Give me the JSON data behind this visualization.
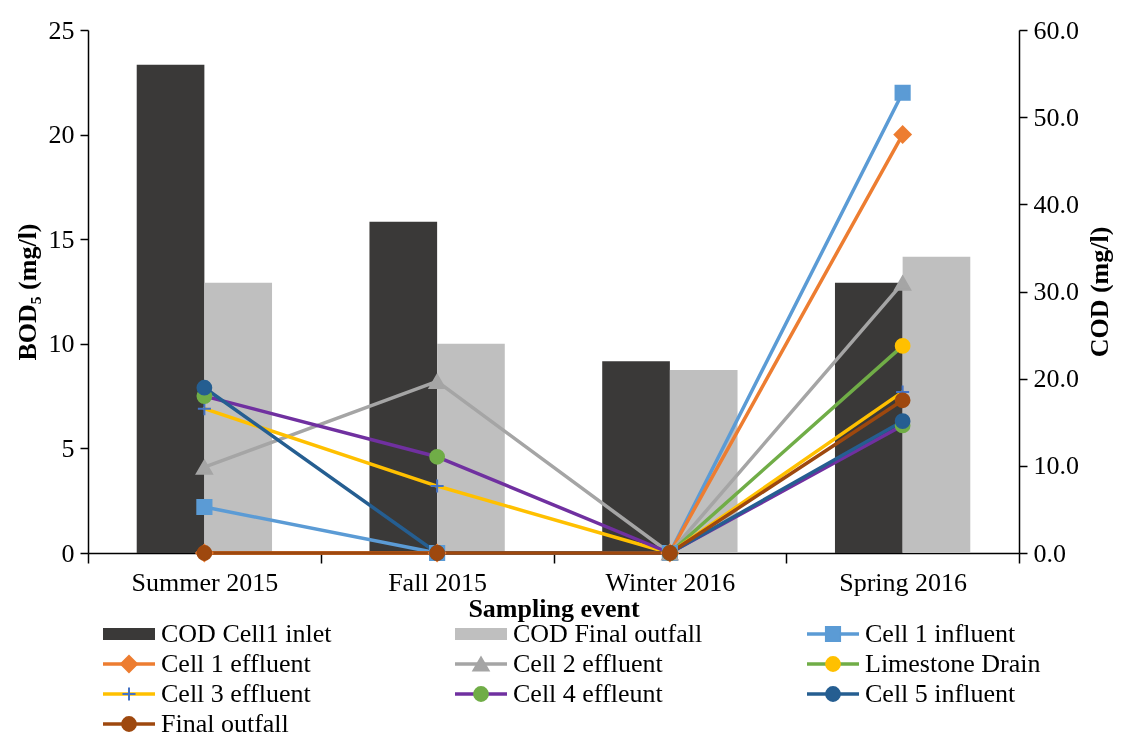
{
  "chart_data": {
    "type": "bar",
    "xlabel": "Sampling event",
    "ylabel": "BOD₅ (mg/l)",
    "y2label": "COD (mg/l)",
    "categories": [
      "Summer 2015",
      "Fall 2015",
      "Winter 2016",
      "Spring 2016"
    ],
    "series": [
      {
        "name": "COD Cell1 inlet",
        "axis": "y2",
        "color": "#3a3938",
        "values": [
          56,
          38,
          22,
          31
        ]
      },
      {
        "name": "COD Final outfall",
        "axis": "y2",
        "color": "#bfbfbf",
        "values": [
          31,
          24,
          21,
          34
        ]
      },
      {
        "name": "Cell 1 influent",
        "type": "line",
        "color": "#5b9bd5",
        "marker": "square",
        "values": [
          2.2,
          0,
          0,
          22
        ]
      },
      {
        "name": "Cell 1 effluent",
        "type": "line",
        "color": "#ed7d31",
        "marker": "diamond",
        "values": [
          0,
          0,
          0,
          20
        ]
      },
      {
        "name": "Cell 2 effluent",
        "type": "line",
        "color": "#a5a5a5",
        "marker": "triangle",
        "values": [
          4.1,
          8.2,
          0,
          12.9
        ]
      },
      {
        "name": "Limestone Drain",
        "type": "line",
        "color": "#70ad47",
        "colors": [
          "#ffc000",
          "#ffc000",
          "#ffc000",
          "#ffc000"
        ],
        "marker": "circle",
        "values": [
          null,
          null,
          0,
          9.9
        ]
      },
      {
        "name": "Cell 3 effluent",
        "type": "line",
        "color": "#ffc000",
        "colors": [
          "#4472c4",
          "#4472c4",
          "#4472c4",
          "#4472c4"
        ],
        "marker": "cross",
        "values": [
          6.9,
          3.2,
          0,
          7.7
        ]
      },
      {
        "name": "Cell 4 effleunt",
        "type": "line",
        "color": "#7030a0",
        "colors": [
          "#70ad47",
          "#70ad47",
          "#70ad47",
          "#70ad47"
        ],
        "marker": "circle",
        "values": [
          7.5,
          4.6,
          0,
          6.1
        ]
      },
      {
        "name": "Cell 5 influent",
        "type": "line",
        "color": "#255e91",
        "marker": "circle",
        "values": [
          7.9,
          0,
          0,
          6.3
        ]
      },
      {
        "name": "Final outfall",
        "type": "line",
        "color": "#9e480e",
        "marker": "circle",
        "values": [
          0,
          0,
          0,
          7.3
        ]
      }
    ],
    "ylim": [
      0,
      25
    ],
    "yticks": [
      0,
      5,
      10,
      15,
      20,
      25
    ],
    "y2lim": [
      0,
      60
    ],
    "y2ticks": [
      {
        "value": 0,
        "label": "0.0"
      },
      {
        "value": 10,
        "label": "10.0"
      },
      {
        "value": 20,
        "label": "20.0"
      },
      {
        "value": 30,
        "label": "30.0"
      },
      {
        "value": 40,
        "label": "40.0"
      },
      {
        "value": 50,
        "label": "50.0"
      },
      {
        "value": 60,
        "label": "60.0"
      }
    ],
    "legend": "bottom"
  }
}
